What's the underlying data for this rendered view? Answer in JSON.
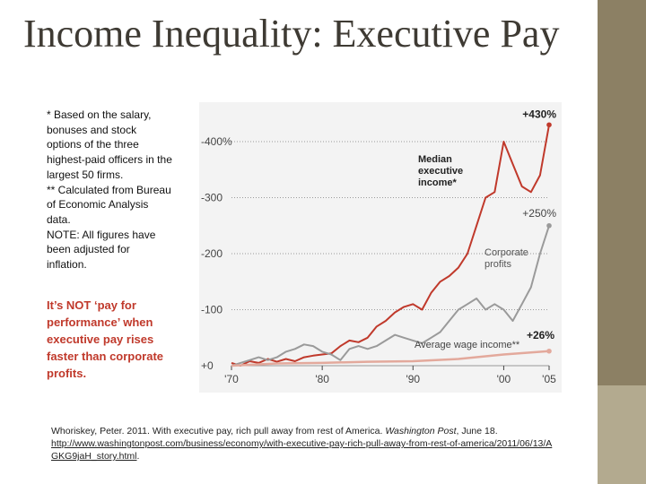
{
  "title": "Income Inequality: Executive Pay",
  "notes": [
    "* Based on the salary, bonuses and stock options of the three highest-paid officers in the largest 50 firms.",
    "** Calculated from Bureau of Economic Analysis data.",
    "NOTE: All figures have been adjusted for inflation."
  ],
  "callout": "It’s NOT ‘pay for performance’ when executive pay rises faster than corporate profits.",
  "citation": {
    "text": "Whoriskey, Peter. 2011. With executive pay, rich pull away from rest of America. ",
    "publication": "Washington Post",
    "date": ", June 18.",
    "url": "http://www.washingtonpost.com/business/economy/with-executive-pay-rich-pull-away-from-rest-of-america/2011/06/13/AGKG9jaH_story.html",
    "url_suffix": "."
  },
  "colors": {
    "executive": "#c0392b",
    "profits": "#9a9a9a",
    "wage": "#e3a99c",
    "grid": "#9a9a9a"
  },
  "chart_data": {
    "type": "line",
    "title": "",
    "xlabel": "",
    "ylabel": "",
    "xlim": [
      1970,
      2005
    ],
    "ylim": [
      0,
      430
    ],
    "y_ticks": [
      {
        "value": 0,
        "label": "+0"
      },
      {
        "value": 100,
        "label": "-100"
      },
      {
        "value": 200,
        "label": "-200"
      },
      {
        "value": 300,
        "label": "-300"
      },
      {
        "value": 400,
        "label": "-400%"
      }
    ],
    "x_ticks": [
      {
        "value": 1970,
        "label": "'70"
      },
      {
        "value": 1980,
        "label": "'80"
      },
      {
        "value": 1990,
        "label": "'90"
      },
      {
        "value": 2000,
        "label": "'00"
      },
      {
        "value": 2005,
        "label": "'05"
      }
    ],
    "series": [
      {
        "name": "Median executive income*",
        "name_lines": [
          "Median",
          "executive",
          "income*"
        ],
        "end_label": "+430%",
        "color": "#c0392b",
        "x": [
          1970,
          1971,
          1972,
          1973,
          1974,
          1975,
          1976,
          1977,
          1978,
          1979,
          1980,
          1981,
          1982,
          1983,
          1984,
          1985,
          1986,
          1987,
          1988,
          1989,
          1990,
          1991,
          1992,
          1993,
          1994,
          1995,
          1996,
          1997,
          1998,
          1999,
          2000,
          2001,
          2002,
          2003,
          2004,
          2005
        ],
        "values": [
          5,
          0,
          8,
          5,
          12,
          7,
          12,
          8,
          15,
          18,
          20,
          22,
          35,
          45,
          42,
          50,
          70,
          80,
          95,
          105,
          110,
          100,
          130,
          150,
          160,
          175,
          200,
          250,
          300,
          310,
          400,
          360,
          320,
          310,
          340,
          430
        ]
      },
      {
        "name": "Corporate profits",
        "name_lines": [
          "Corporate",
          "profits"
        ],
        "end_label": "+250%",
        "color": "#9a9a9a",
        "x": [
          1970,
          1971,
          1972,
          1973,
          1974,
          1975,
          1976,
          1977,
          1978,
          1979,
          1980,
          1981,
          1982,
          1983,
          1984,
          1985,
          1986,
          1987,
          1988,
          1989,
          1990,
          1991,
          1992,
          1993,
          1994,
          1995,
          1996,
          1997,
          1998,
          1999,
          2000,
          2001,
          2002,
          2003,
          2004,
          2005
        ],
        "values": [
          0,
          5,
          10,
          15,
          10,
          15,
          25,
          30,
          38,
          35,
          25,
          20,
          10,
          30,
          35,
          30,
          35,
          45,
          55,
          50,
          45,
          40,
          50,
          60,
          80,
          100,
          110,
          120,
          100,
          110,
          100,
          80,
          110,
          140,
          200,
          250
        ]
      },
      {
        "name": "Average wage income**",
        "name_lines": [
          "Average wage income**"
        ],
        "end_label": "+26%",
        "color": "#e3a99c",
        "x": [
          1970,
          1975,
          1980,
          1985,
          1990,
          1995,
          2000,
          2005
        ],
        "values": [
          0,
          4,
          5,
          7,
          8,
          12,
          20,
          26
        ]
      }
    ]
  }
}
